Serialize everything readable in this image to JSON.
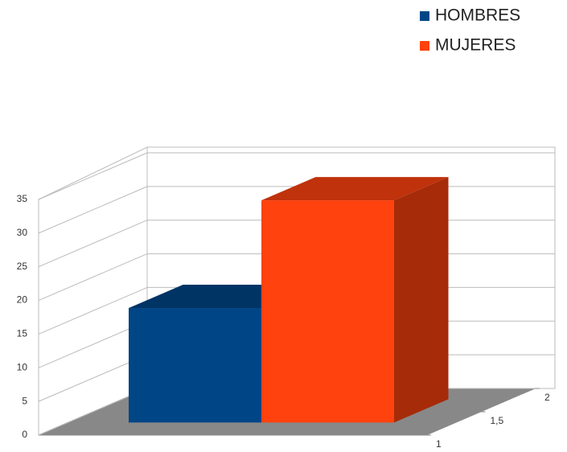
{
  "chart_data": {
    "type": "bar3d",
    "categories": [
      null
    ],
    "series": [
      {
        "name": "HOMBRES",
        "color": "#004586",
        "values": [
          17
        ]
      },
      {
        "name": "MUJERES",
        "color": "#ff420e",
        "values": [
          33
        ]
      }
    ],
    "ylim": [
      0,
      35
    ],
    "yticks": [
      0,
      5,
      10,
      15,
      20,
      25,
      30,
      35
    ],
    "zlim": [
      1,
      2
    ],
    "zticks": [
      1,
      {
        "value": 1.5,
        "label": "1,5"
      },
      2
    ],
    "grid": true,
    "legend": "top-right"
  }
}
